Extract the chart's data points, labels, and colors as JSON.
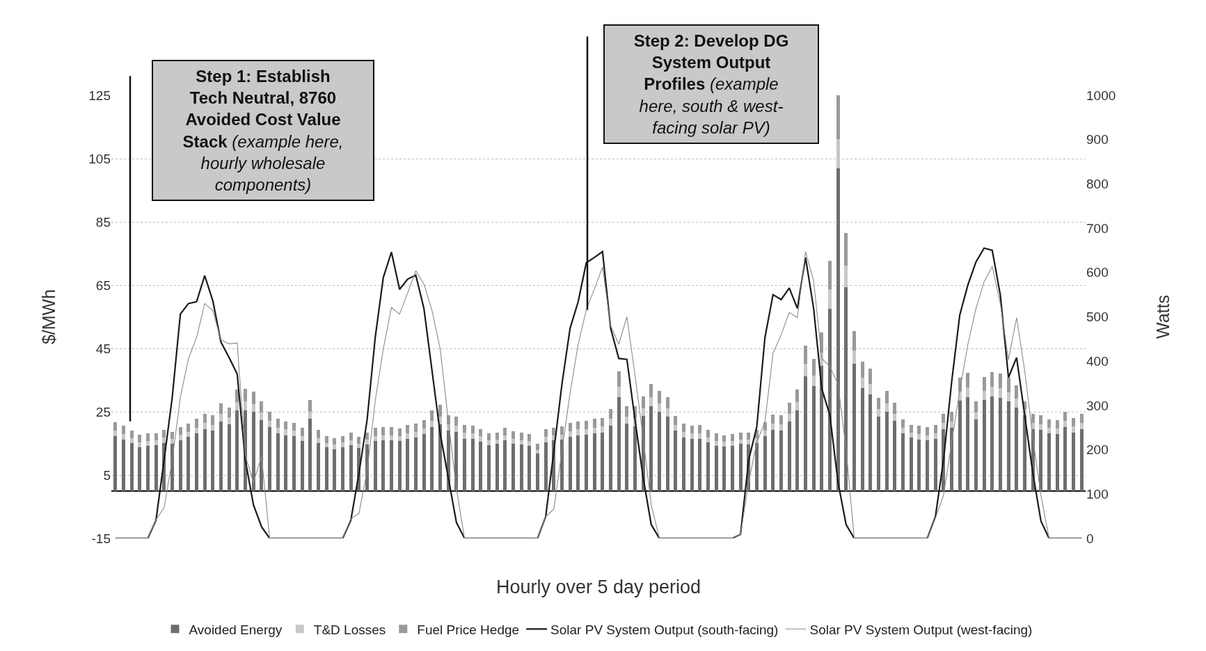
{
  "chart_data": {
    "type": "bar",
    "stacked": true,
    "xlabel": "Hourly over 5 day period",
    "ylabel": "$/MWh",
    "y2label": "Watts",
    "annotations": [
      "Step 1: Establish\nTech Neutral, 8760\nAvoided Cost Value\nStack (example here,\nhourly wholesale\ncomponents)",
      "Step 2: Develop DG\nSystem Output\nProfiles (example\nhere, south & west-\nfacing solar PV)"
    ],
    "categories": [
      null,
      null,
      null,
      null,
      null,
      null,
      null,
      null,
      null,
      null,
      null,
      null,
      null,
      null,
      null,
      null,
      null,
      null,
      null,
      null,
      null,
      null,
      null,
      null,
      null,
      null,
      null,
      null,
      null,
      null,
      null,
      null,
      null,
      null,
      null,
      null,
      null,
      null,
      null,
      null,
      null,
      null,
      null,
      null,
      null,
      null,
      null,
      null,
      null,
      null,
      null,
      null,
      null,
      null,
      null,
      null,
      null,
      null,
      null,
      null,
      null,
      null,
      null,
      null,
      null,
      null,
      null,
      null,
      null,
      null,
      null,
      null,
      null,
      null,
      null,
      null,
      null,
      null,
      null,
      null,
      null,
      null,
      null,
      null,
      null,
      null,
      null,
      null,
      null,
      null,
      null,
      null,
      null,
      null,
      null,
      null,
      null,
      null,
      null,
      null,
      null,
      null,
      null,
      null,
      null,
      null,
      null,
      null,
      null,
      null,
      null,
      null,
      null,
      null,
      null,
      null,
      null,
      null,
      null,
      null
    ],
    "series": [
      {
        "name": "Avoided Energy",
        "color": "#6e6e6e",
        "values": [
          17.3,
          16.3,
          15.1,
          13.9,
          14.3,
          14.4,
          15.1,
          14.9,
          16.1,
          17.0,
          18.1,
          19.4,
          19.0,
          22.0,
          21.1,
          25.5,
          25.5,
          24.9,
          22.4,
          20.1,
          18.2,
          17.6,
          17.3,
          15.8,
          22.7,
          15.1,
          13.7,
          13.2,
          13.9,
          14.5,
          13.5,
          14.6,
          15.7,
          16.0,
          16.0,
          15.7,
          16.4,
          16.9,
          18.0,
          20.1,
          21.1,
          19.0,
          18.7,
          16.5,
          16.4,
          15.6,
          14.4,
          14.8,
          16.0,
          14.9,
          14.6,
          14.3,
          11.8,
          15.4,
          16.0,
          16.2,
          17.1,
          17.6,
          17.7,
          18.2,
          18.5,
          20.6,
          29.7,
          21.3,
          20.4,
          23.6,
          26.8,
          25.1,
          23.5,
          19.0,
          16.9,
          16.5,
          16.5,
          15.3,
          14.3,
          14.1,
          14.3,
          14.8,
          14.6,
          15.1,
          17.3,
          19.2,
          19.0,
          22.0,
          25.4,
          36.3,
          33.1,
          39.4,
          57.6,
          102.0,
          64.4,
          40.1,
          32.4,
          30.6,
          23.4,
          25.0,
          22.1,
          18.1,
          16.9,
          16.3,
          16.0,
          16.5,
          19.4,
          19.9,
          28.5,
          29.6,
          22.5,
          28.7,
          29.8,
          29.4,
          28.2,
          26.4,
          23.9,
          19.6,
          19.2,
          18.1,
          18.0,
          20.1,
          18.5,
          19.4
        ]
      },
      {
        "name": "T&D Losses",
        "color": "#c8c8c8",
        "values": [
          1.8,
          1.7,
          1.6,
          1.5,
          1.5,
          1.5,
          1.7,
          1.5,
          1.6,
          1.7,
          1.8,
          2.0,
          1.9,
          2.3,
          2.1,
          2.6,
          2.7,
          2.6,
          2.3,
          2.0,
          1.8,
          1.8,
          1.7,
          1.6,
          2.4,
          1.6,
          1.5,
          1.4,
          1.4,
          1.5,
          1.4,
          1.6,
          1.7,
          1.6,
          1.6,
          1.6,
          1.8,
          1.8,
          1.8,
          2.1,
          2.4,
          2.0,
          1.9,
          1.8,
          1.7,
          1.6,
          1.5,
          1.5,
          1.6,
          1.6,
          1.5,
          1.5,
          1.2,
          1.6,
          1.6,
          1.6,
          1.8,
          1.8,
          1.8,
          1.8,
          1.8,
          2.1,
          3.2,
          2.2,
          2.6,
          2.5,
          2.8,
          2.6,
          2.5,
          1.9,
          1.8,
          1.6,
          1.7,
          1.6,
          1.5,
          1.4,
          1.5,
          1.5,
          1.6,
          1.6,
          1.8,
          2.0,
          2.0,
          2.3,
          2.6,
          3.8,
          3.4,
          4.2,
          6.0,
          9.2,
          6.8,
          4.2,
          3.4,
          3.2,
          2.4,
          2.7,
          2.3,
          1.8,
          1.6,
          1.7,
          1.6,
          1.7,
          2.0,
          2.0,
          2.9,
          3.0,
          2.3,
          3.0,
          3.1,
          3.0,
          3.0,
          2.8,
          1.7,
          1.9,
          1.9,
          1.8,
          1.7,
          2.0,
          1.8,
          2.0
        ]
      },
      {
        "name": "Fuel Price Hedge",
        "color": "#9a9a9a",
        "values": [
          2.6,
          2.6,
          2.3,
          2.3,
          2.3,
          2.3,
          2.5,
          2.3,
          2.4,
          2.6,
          2.8,
          2.9,
          2.9,
          3.4,
          3.2,
          3.9,
          4.1,
          3.8,
          3.5,
          2.9,
          2.7,
          2.6,
          2.5,
          2.5,
          3.6,
          2.5,
          2.2,
          2.1,
          2.0,
          2.3,
          2.1,
          2.3,
          2.5,
          2.5,
          2.5,
          2.4,
          2.6,
          2.6,
          2.6,
          3.2,
          3.6,
          2.9,
          2.8,
          2.6,
          2.5,
          2.4,
          2.3,
          2.2,
          2.3,
          2.3,
          2.2,
          2.2,
          1.9,
          2.4,
          2.4,
          2.5,
          2.6,
          2.6,
          2.7,
          2.8,
          2.7,
          3.1,
          4.8,
          3.3,
          3.8,
          3.8,
          4.2,
          4.0,
          3.7,
          2.8,
          2.6,
          2.5,
          2.6,
          2.3,
          2.3,
          2.1,
          2.2,
          2.2,
          2.3,
          2.5,
          2.7,
          2.9,
          2.9,
          3.5,
          4.0,
          5.8,
          5.2,
          6.4,
          9.1,
          13.8,
          10.3,
          6.2,
          5.0,
          4.8,
          3.6,
          4.0,
          3.4,
          2.6,
          2.4,
          2.6,
          2.5,
          2.6,
          2.9,
          3.0,
          4.4,
          4.6,
          3.5,
          4.4,
          4.7,
          4.6,
          4.6,
          4.1,
          2.6,
          2.9,
          2.8,
          2.6,
          2.6,
          3.0,
          2.8,
          2.9
        ]
      },
      {
        "name": "Solar PV System Output (south-facing)",
        "type": "line",
        "axis": "y2",
        "color": "#1a1a1a",
        "values": [
          0,
          0,
          0,
          0,
          0,
          41,
          177,
          318,
          506,
          530,
          534,
          593,
          536,
          443,
          408,
          371,
          177,
          76,
          26,
          0,
          0,
          0,
          0,
          0,
          0,
          0,
          0,
          0,
          0,
          41,
          147,
          267,
          453,
          589,
          646,
          562,
          585,
          594,
          519,
          378,
          237,
          137,
          36,
          0,
          0,
          0,
          0,
          0,
          0,
          0,
          0,
          0,
          0,
          49,
          197,
          348,
          474,
          534,
          622,
          634,
          647,
          474,
          406,
          404,
          268,
          137,
          31,
          0,
          0,
          0,
          0,
          0,
          0,
          0,
          0,
          0,
          0,
          9,
          177,
          252,
          453,
          550,
          539,
          565,
          519,
          634,
          519,
          338,
          278,
          127,
          31,
          0,
          0,
          0,
          0,
          0,
          0,
          0,
          0,
          0,
          0,
          49,
          177,
          353,
          504,
          572,
          624,
          655,
          650,
          549,
          363,
          408,
          278,
          147,
          39,
          0,
          0,
          0,
          0,
          0
        ]
      },
      {
        "name": "Solar PV System Output (west-facing)",
        "type": "line",
        "axis": "y2",
        "color": "#8a8a8a",
        "values": [
          0,
          0,
          0,
          0,
          0,
          42,
          69,
          177,
          318,
          406,
          453,
          530,
          514,
          448,
          439,
          441,
          187,
          126,
          185,
          0,
          0,
          0,
          0,
          0,
          0,
          0,
          0,
          0,
          0,
          44,
          56,
          152,
          310,
          428,
          521,
          506,
          554,
          604,
          574,
          514,
          428,
          267,
          112,
          0,
          0,
          0,
          0,
          0,
          0,
          0,
          0,
          0,
          0,
          49,
          66,
          197,
          328,
          438,
          516,
          563,
          612,
          480,
          438,
          500,
          368,
          227,
          76,
          0,
          0,
          0,
          0,
          0,
          0,
          0,
          0,
          0,
          0,
          9,
          127,
          217,
          262,
          418,
          459,
          510,
          498,
          647,
          582,
          406,
          388,
          348,
          202,
          0,
          0,
          0,
          0,
          0,
          0,
          0,
          0,
          0,
          0,
          46,
          97,
          217,
          333,
          438,
          519,
          579,
          614,
          529,
          403,
          498,
          378,
          227,
          97,
          0,
          0,
          0,
          0,
          0
        ]
      }
    ],
    "ylim": [
      -15,
      125
    ],
    "yticks": [
      -15,
      5,
      25,
      45,
      65,
      85,
      105,
      125
    ],
    "y2lim": [
      0,
      1000
    ],
    "y2ticks": [
      0,
      100,
      200,
      300,
      400,
      500,
      600,
      700,
      800,
      900,
      1000
    ],
    "grid": "y",
    "legend": "bottom"
  }
}
